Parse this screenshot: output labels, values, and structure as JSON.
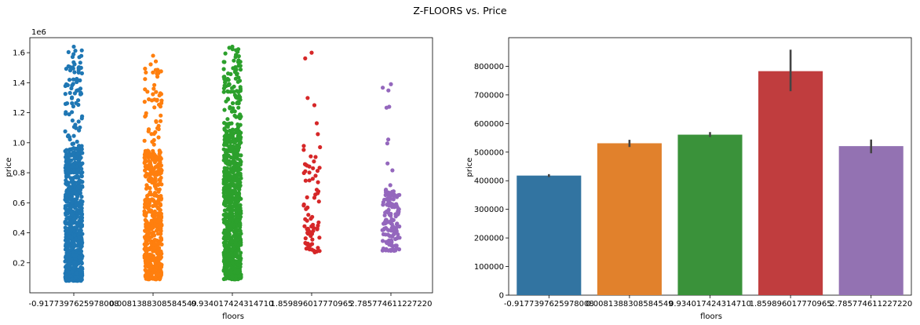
{
  "figure": {
    "title": "Z-FLOORS vs. Price"
  },
  "colors": [
    "#1f77b4",
    "#ff7f0e",
    "#2ca02c",
    "#d62728",
    "#9467bd"
  ],
  "bar_colors": [
    "#3274a1",
    "#e1812c",
    "#3a923a",
    "#c03d3e",
    "#9372b2"
  ],
  "chart_data": [
    {
      "type": "scatter",
      "subtype": "stripplot",
      "xlabel": "floors",
      "ylabel": "price",
      "offset_text": "1e6",
      "categories": [
        "-0.9177397625978008",
        "0.0081388308584549",
        "0.934017424314710",
        "1.859896017770965",
        "2.785774611227220"
      ],
      "yticks": [
        0.2,
        0.4,
        0.6,
        0.8,
        1.0,
        1.2,
        1.4,
        1.6
      ],
      "ytick_labels": [
        "0.2",
        "0.4",
        "0.6",
        "0.8",
        "1.0",
        "1.2",
        "1.4",
        "1.6"
      ],
      "ylim": [
        0.0,
        1.7
      ],
      "point_summary": [
        {
          "category": "-0.9177397625978008",
          "min": 0.08,
          "dense_max": 0.97,
          "max": 1.64,
          "count_approx": 800
        },
        {
          "category": "0.0081388308584549",
          "min": 0.09,
          "dense_max": 0.95,
          "max": 1.58,
          "count_approx": 550
        },
        {
          "category": "0.934017424314710",
          "min": 0.09,
          "dense_max": 1.1,
          "max": 1.64,
          "count_approx": 950
        },
        {
          "category": "1.859896017770965",
          "min": 0.27,
          "dense_max": 1.0,
          "max": 1.6,
          "count_approx": 80
        },
        {
          "category": "2.785774611227220",
          "min": 0.28,
          "dense_max": 0.7,
          "max": 1.39,
          "count_approx": 140
        }
      ]
    },
    {
      "type": "bar",
      "xlabel": "floors",
      "ylabel": "price",
      "categories": [
        "-0.9177397625978008",
        "0.0081388308584549",
        "0.934017424314710",
        "1.859896017770965",
        "2.785774611227220"
      ],
      "values": [
        418000,
        531000,
        561000,
        783000,
        521000
      ],
      "error_low": [
        413000,
        518000,
        553000,
        713000,
        496000
      ],
      "error_high": [
        423000,
        543000,
        570000,
        858000,
        544000
      ],
      "yticks": [
        0,
        100000,
        200000,
        300000,
        400000,
        500000,
        600000,
        700000,
        800000
      ],
      "ytick_labels": [
        "0",
        "100000",
        "200000",
        "300000",
        "400000",
        "500000",
        "600000",
        "700000",
        "800000"
      ],
      "ylim": [
        0,
        900000
      ]
    }
  ]
}
